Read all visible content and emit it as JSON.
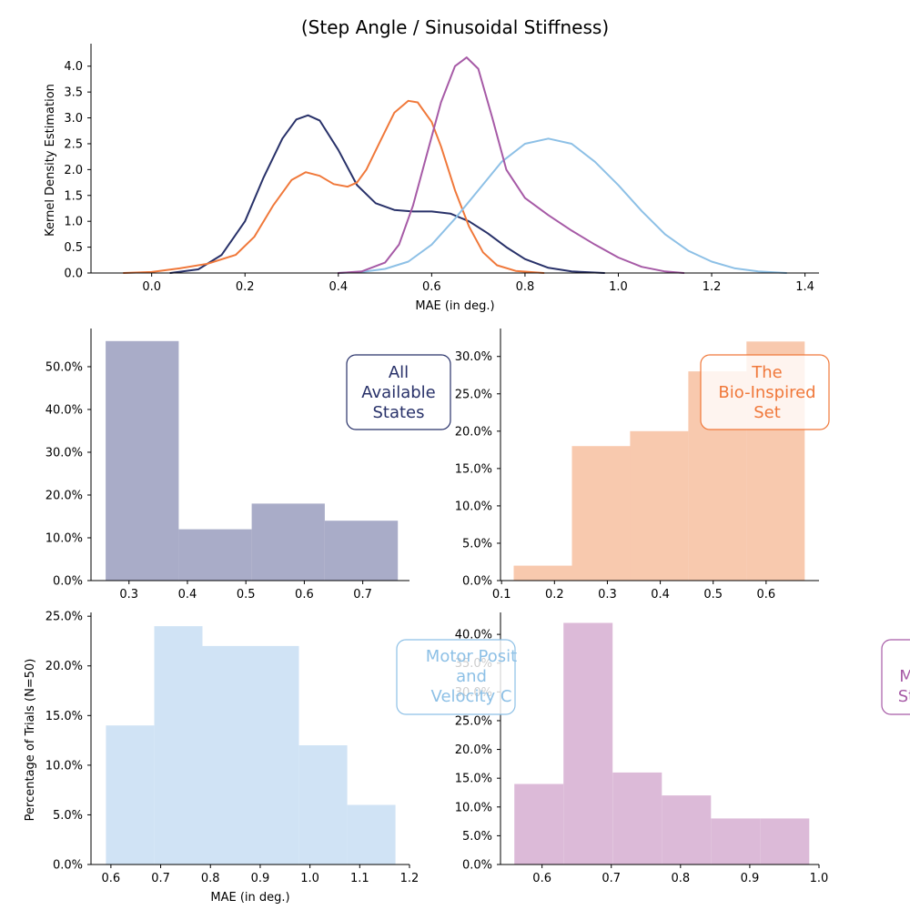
{
  "figure": {
    "title": "(Step Angle / Sinusoidal Stiffness)"
  },
  "colors": {
    "all": "#283169",
    "bio": "#f0783a",
    "motor": "#8dc0e6",
    "fourth": "#a65aa6",
    "all_fill": "#a9acc8",
    "bio_fill": "#f8c9ae",
    "motor_fill": "#d0e3f5",
    "fourth_fill": "#dcbad8"
  },
  "chart_data": [
    {
      "id": "kde",
      "type": "line",
      "xlabel": "MAE (in deg.)",
      "ylabel": "Kernel Density Estimation",
      "xlim": [
        -0.13,
        1.43
      ],
      "ylim": [
        0,
        4.4
      ],
      "xticks": [
        "0.0",
        "0.2",
        "0.4",
        "0.6",
        "0.8",
        "1.0",
        "1.2",
        "1.4"
      ],
      "yticks": [
        "0.0",
        "0.5",
        "1.0",
        "1.5",
        "2.0",
        "2.5",
        "3.0",
        "3.5",
        "4.0"
      ],
      "series": [
        {
          "color_key": "all",
          "x": [
            0.04,
            0.1,
            0.15,
            0.2,
            0.24,
            0.28,
            0.31,
            0.335,
            0.36,
            0.4,
            0.44,
            0.48,
            0.52,
            0.56,
            0.6,
            0.64,
            0.68,
            0.72,
            0.76,
            0.8,
            0.85,
            0.9,
            0.97
          ],
          "y": [
            0.0,
            0.07,
            0.35,
            1.0,
            1.85,
            2.6,
            2.97,
            3.05,
            2.95,
            2.38,
            1.7,
            1.35,
            1.22,
            1.19,
            1.19,
            1.15,
            1.0,
            0.77,
            0.5,
            0.27,
            0.1,
            0.03,
            0.0
          ]
        },
        {
          "color_key": "bio",
          "x": [
            -0.06,
            0.0,
            0.06,
            0.12,
            0.18,
            0.22,
            0.26,
            0.3,
            0.33,
            0.36,
            0.39,
            0.42,
            0.44,
            0.46,
            0.49,
            0.52,
            0.55,
            0.57,
            0.6,
            0.62,
            0.65,
            0.68,
            0.71,
            0.74,
            0.78,
            0.84
          ],
          "y": [
            0.0,
            0.02,
            0.09,
            0.18,
            0.35,
            0.7,
            1.3,
            1.8,
            1.95,
            1.88,
            1.72,
            1.67,
            1.75,
            2.0,
            2.55,
            3.1,
            3.33,
            3.3,
            2.92,
            2.45,
            1.6,
            0.9,
            0.4,
            0.15,
            0.04,
            0.0
          ]
        },
        {
          "color_key": "motor",
          "x": [
            0.4,
            0.45,
            0.5,
            0.55,
            0.6,
            0.65,
            0.7,
            0.75,
            0.8,
            0.85,
            0.9,
            0.95,
            1.0,
            1.05,
            1.1,
            1.15,
            1.2,
            1.25,
            1.3,
            1.36
          ],
          "y": [
            0.0,
            0.02,
            0.08,
            0.22,
            0.55,
            1.05,
            1.6,
            2.15,
            2.5,
            2.6,
            2.5,
            2.15,
            1.7,
            1.2,
            0.75,
            0.43,
            0.22,
            0.09,
            0.03,
            0.0
          ]
        },
        {
          "color_key": "fourth",
          "x": [
            0.4,
            0.45,
            0.5,
            0.53,
            0.56,
            0.59,
            0.62,
            0.65,
            0.675,
            0.7,
            0.73,
            0.76,
            0.8,
            0.85,
            0.9,
            0.95,
            1.0,
            1.05,
            1.1,
            1.14
          ],
          "y": [
            0.0,
            0.03,
            0.2,
            0.55,
            1.3,
            2.3,
            3.3,
            4.0,
            4.17,
            3.95,
            3.0,
            2.0,
            1.45,
            1.12,
            0.82,
            0.55,
            0.3,
            0.12,
            0.03,
            0.0
          ]
        }
      ]
    },
    {
      "id": "hist-all",
      "type": "bar",
      "color_key": "all_fill",
      "box_color_key": "all",
      "xlim": [
        0.235,
        0.78
      ],
      "ylim": [
        0,
        58.5
      ],
      "xticks": [
        "0.3",
        "0.4",
        "0.5",
        "0.6",
        "0.7"
      ],
      "yticks": [
        "0.0%",
        "10.0%",
        "20.0%",
        "30.0%",
        "40.0%",
        "50.0%"
      ],
      "bin_edges": [
        0.26,
        0.385,
        0.51,
        0.635,
        0.76
      ],
      "values": [
        56,
        12,
        18,
        14
      ],
      "box_lines": [
        "All",
        "Available",
        "States"
      ]
    },
    {
      "id": "hist-bio",
      "type": "bar",
      "color_key": "bio_fill",
      "box_color_key": "bio",
      "xlim": [
        0.098,
        0.7
      ],
      "ylim": [
        0,
        33.5
      ],
      "xticks": [
        "0.1",
        "0.2",
        "0.3",
        "0.4",
        "0.5",
        "0.6"
      ],
      "yticks": [
        "0.0%",
        "5.0%",
        "10.0%",
        "15.0%",
        "20.0%",
        "25.0%",
        "30.0%"
      ],
      "bin_edges": [
        0.123,
        0.233,
        0.343,
        0.453,
        0.563,
        0.673
      ],
      "values": [
        2,
        18,
        20,
        28,
        32
      ],
      "box_lines": [
        "The",
        "Bio-Inspired",
        "Set"
      ]
    },
    {
      "id": "hist-motor",
      "type": "bar",
      "color_key": "motor_fill",
      "box_color_key": "motor",
      "ylabel": "Percentage of Trials (N=50)",
      "xlabel": "MAE (in deg.)",
      "xlim": [
        0.56,
        1.2
      ],
      "ylim": [
        0,
        25.2
      ],
      "xticks": [
        "0.6",
        "0.7",
        "0.8",
        "0.9",
        "1.0",
        "1.1",
        "1.2"
      ],
      "yticks": [
        "0.0%",
        "5.0%",
        "10.0%",
        "15.0%",
        "20.0%",
        "25.0%"
      ],
      "bin_edges": [
        0.59,
        0.687,
        0.784,
        0.881,
        0.978,
        1.075,
        1.172
      ],
      "values": [
        14,
        24,
        22,
        22,
        12,
        6
      ],
      "box_lines": [
        "Motor Posit",
        "and",
        "Velocity C"
      ]
    },
    {
      "id": "hist-fourth",
      "type": "bar",
      "color_key": "fourth_fill",
      "box_color_key": "fourth",
      "xlim": [
        0.54,
        1.0
      ],
      "ylim": [
        0,
        43.5
      ],
      "xticks": [
        "0.6",
        "0.7",
        "0.8",
        "0.9",
        "1.0"
      ],
      "yticks": [
        "0.0%",
        "5.0%",
        "10.0%",
        "15.0%",
        "20.0%",
        "25.0%",
        "30.0%",
        "35.0%",
        "40.0%"
      ],
      "bin_edges": [
        0.56,
        0.631,
        0.702,
        0.773,
        0.844,
        0.915,
        0.986
      ],
      "values": [
        14,
        42,
        16,
        12,
        8,
        8
      ],
      "box_lines": [
        "M",
        "St"
      ]
    }
  ]
}
